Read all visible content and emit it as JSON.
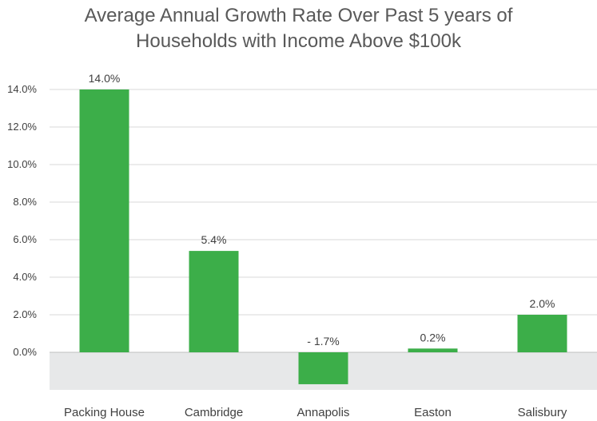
{
  "chart_data": {
    "type": "bar",
    "title_lines": [
      "Average Annual Growth Rate Over Past 5 years of",
      "Households with Income Above $100k"
    ],
    "categories": [
      "Packing House",
      "Cambridge",
      "Annapolis",
      "Easton",
      "Salisbury"
    ],
    "values": [
      14.0,
      5.4,
      -1.7,
      0.2,
      2.0
    ],
    "data_labels": [
      "14.0%",
      "5.4%",
      "- 1.7%",
      "0.2%",
      "2.0%"
    ],
    "y_ticks": [
      "0.0%",
      "2.0%",
      "4.0%",
      "6.0%",
      "8.0%",
      "10.0%",
      "12.0%",
      "14.0%"
    ],
    "ylim": [
      -1.8,
      14.0
    ],
    "xlabel": "",
    "ylabel": "",
    "grid": true,
    "negative_region_shaded": true,
    "colors": {
      "bar": "#3cae49",
      "grid": "#d9d9d9",
      "negative_band": "#e7e8e9",
      "zero_line": "#bfbfbf"
    }
  }
}
